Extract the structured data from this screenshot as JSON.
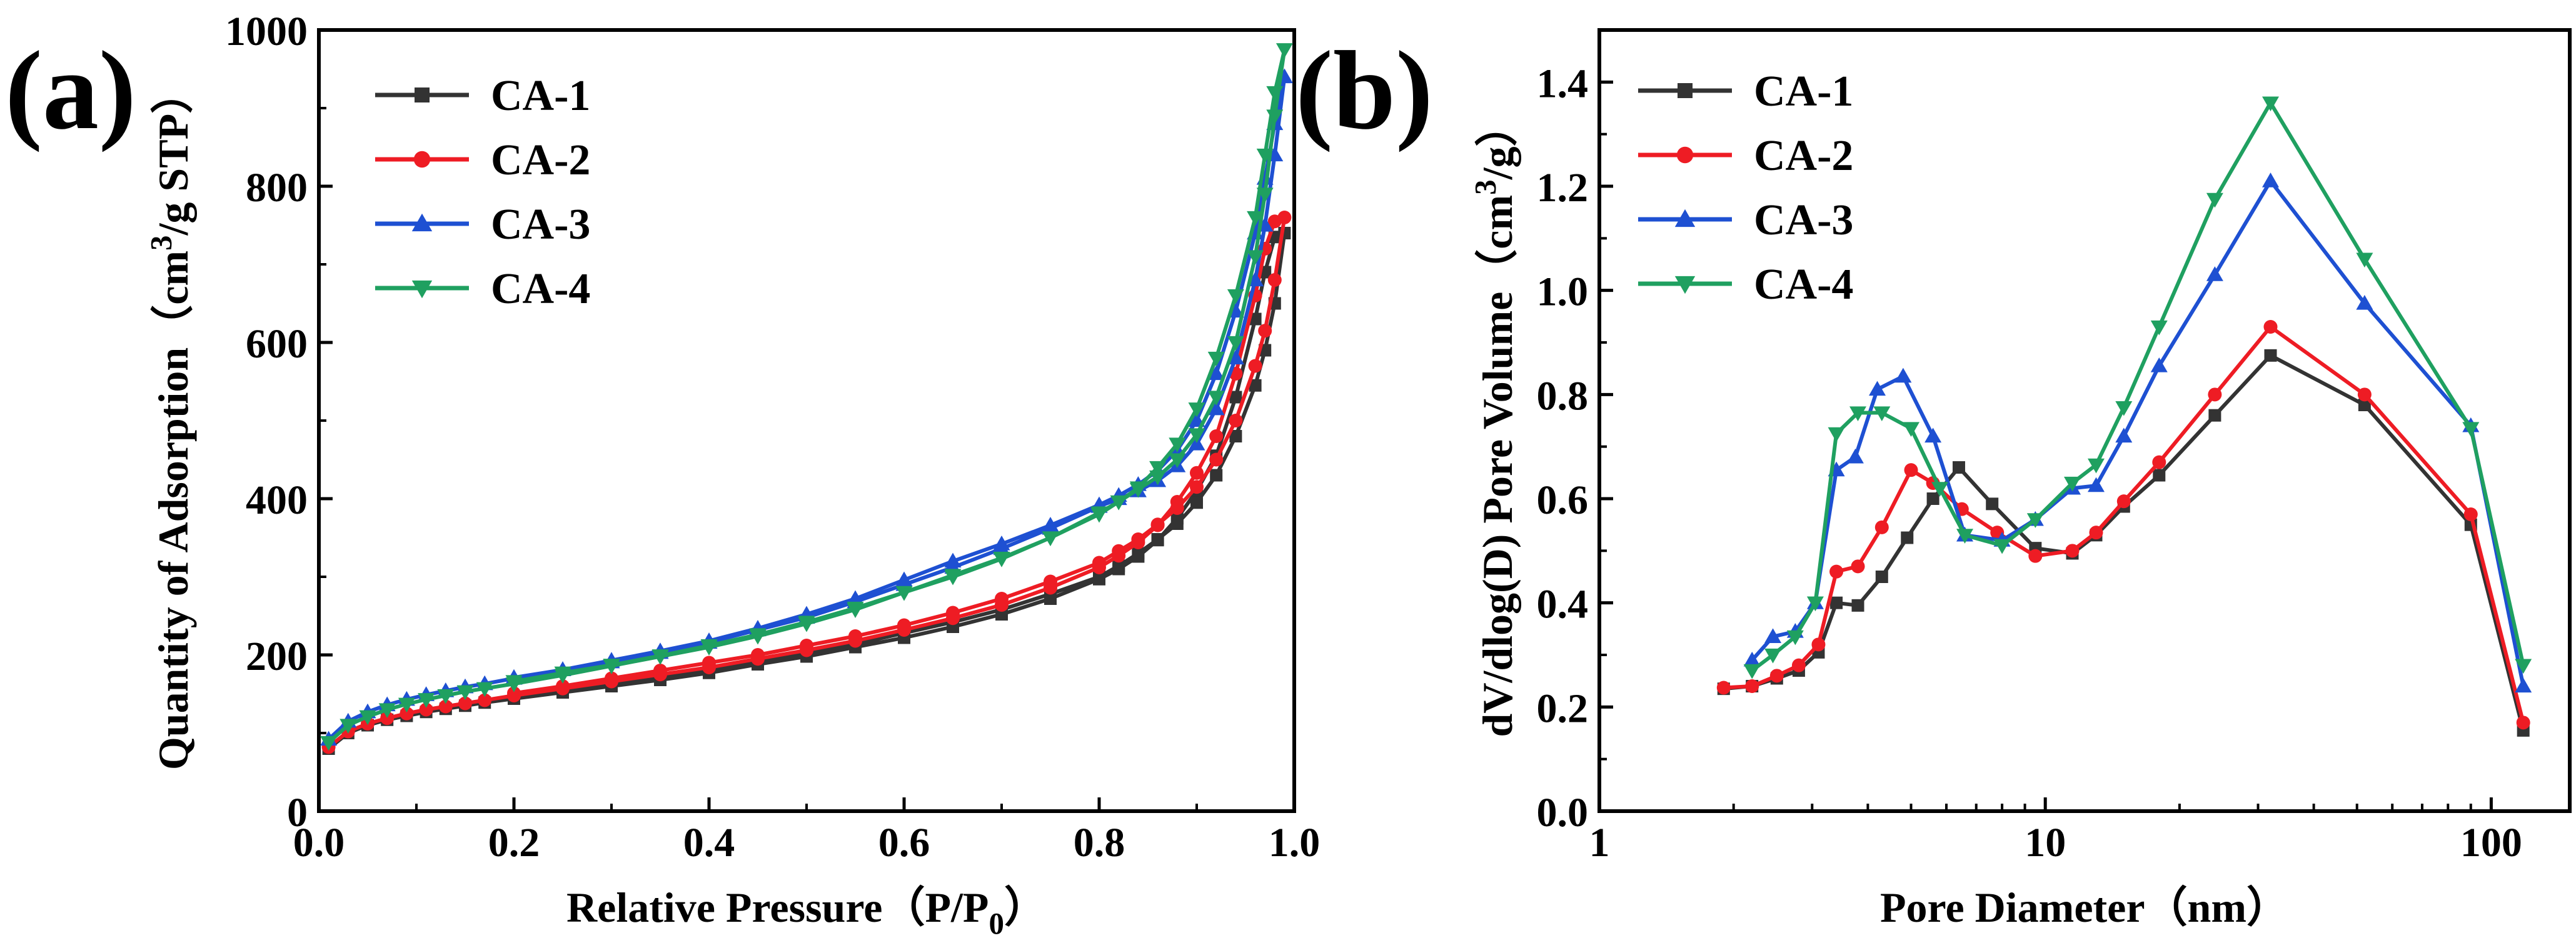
{
  "chart_data": [
    {
      "panel_label": "(a)",
      "type": "line",
      "title": "",
      "xlabel": "Relative Pressure（P/P0）",
      "ylabel": "Quantity of Adsorption（cm3/g STP）",
      "xlim": [
        0,
        1.0
      ],
      "ylim": [
        0,
        1000
      ],
      "x_scale": "linear",
      "x_ticks": [
        "0.0",
        "0.2",
        "0.4",
        "0.6",
        "0.8",
        "1.0"
      ],
      "y_ticks": [
        "0",
        "200",
        "400",
        "600",
        "800",
        "1000"
      ],
      "grid": false,
      "legend_position": "top-left",
      "series": [
        {
          "name": "CA-1",
          "color": "#333333",
          "marker": "square",
          "x": [
            0.01,
            0.03,
            0.05,
            0.07,
            0.09,
            0.11,
            0.13,
            0.15,
            0.17,
            0.2,
            0.25,
            0.3,
            0.35,
            0.4,
            0.45,
            0.5,
            0.55,
            0.6,
            0.65,
            0.7,
            0.75,
            0.8,
            0.82,
            0.84,
            0.86,
            0.88,
            0.9,
            0.92,
            0.94,
            0.96,
            0.97,
            0.98,
            0.99,
            0.98,
            0.97,
            0.96,
            0.94,
            0.92,
            0.9,
            0.88,
            0.86,
            0.84,
            0.82,
            0.8,
            0.75,
            0.7,
            0.65,
            0.6,
            0.55,
            0.5,
            0.45,
            0.4,
            0.35,
            0.3,
            0.25,
            0.2
          ],
          "y": [
            80,
            100,
            110,
            117,
            122,
            127,
            131,
            135,
            139,
            144,
            152,
            160,
            168,
            177,
            188,
            198,
            210,
            222,
            236,
            252,
            272,
            297,
            310,
            326,
            347,
            375,
            410,
            455,
            530,
            630,
            690,
            735,
            740,
            650,
            590,
            545,
            480,
            430,
            395,
            368,
            348,
            330,
            314,
            300,
            278,
            258,
            242,
            228,
            214,
            202,
            192,
            182,
            172,
            162,
            153,
            145
          ]
        },
        {
          "name": "CA-2",
          "color": "#ee1c24",
          "marker": "circle",
          "x": [
            0.01,
            0.03,
            0.05,
            0.07,
            0.09,
            0.11,
            0.13,
            0.15,
            0.17,
            0.2,
            0.25,
            0.3,
            0.35,
            0.4,
            0.45,
            0.5,
            0.55,
            0.6,
            0.65,
            0.7,
            0.75,
            0.8,
            0.82,
            0.84,
            0.86,
            0.88,
            0.9,
            0.92,
            0.94,
            0.96,
            0.97,
            0.98,
            0.99,
            0.98,
            0.97,
            0.96,
            0.94,
            0.92,
            0.9,
            0.88,
            0.86,
            0.84,
            0.82,
            0.8,
            0.75,
            0.7,
            0.65,
            0.6,
            0.55,
            0.5,
            0.45,
            0.4,
            0.35,
            0.3,
            0.25,
            0.2
          ],
          "y": [
            82,
            102,
            112,
            119,
            125,
            130,
            134,
            138,
            142,
            148,
            157,
            166,
            175,
            184,
            195,
            206,
            218,
            232,
            247,
            264,
            286,
            312,
            327,
            344,
            366,
            396,
            433,
            480,
            560,
            660,
            720,
            755,
            760,
            680,
            615,
            570,
            500,
            450,
            415,
            388,
            367,
            348,
            333,
            318,
            294,
            272,
            254,
            238,
            224,
            212,
            200,
            190,
            180,
            170,
            160,
            151
          ]
        },
        {
          "name": "CA-3",
          "color": "#1e50d2",
          "marker": "triangle-up",
          "x": [
            0.01,
            0.03,
            0.05,
            0.07,
            0.09,
            0.11,
            0.13,
            0.15,
            0.17,
            0.2,
            0.25,
            0.3,
            0.35,
            0.4,
            0.45,
            0.5,
            0.55,
            0.6,
            0.65,
            0.7,
            0.75,
            0.8,
            0.82,
            0.84,
            0.86,
            0.88,
            0.9,
            0.92,
            0.94,
            0.96,
            0.97,
            0.98,
            0.99,
            0.98,
            0.97,
            0.96,
            0.94,
            0.92,
            0.9,
            0.88,
            0.86,
            0.84,
            0.82,
            0.8,
            0.75,
            0.7,
            0.65,
            0.6,
            0.55,
            0.5,
            0.45,
            0.4,
            0.35,
            0.3,
            0.25,
            0.2
          ],
          "y": [
            92,
            115,
            127,
            136,
            143,
            149,
            154,
            159,
            163,
            170,
            181,
            193,
            205,
            218,
            234,
            252,
            272,
            296,
            320,
            342,
            366,
            392,
            404,
            418,
            436,
            462,
            500,
            560,
            640,
            740,
            810,
            880,
            940,
            840,
            750,
            680,
            580,
            515,
            470,
            442,
            423,
            410,
            400,
            390,
            362,
            336,
            312,
            290,
            268,
            248,
            232,
            216,
            203,
            191,
            181,
            171
          ]
        },
        {
          "name": "CA-4",
          "color": "#1fa060",
          "marker": "triangle-down",
          "x": [
            0.01,
            0.03,
            0.05,
            0.07,
            0.09,
            0.11,
            0.13,
            0.15,
            0.17,
            0.2,
            0.25,
            0.3,
            0.35,
            0.4,
            0.45,
            0.5,
            0.55,
            0.6,
            0.65,
            0.7,
            0.75,
            0.8,
            0.82,
            0.84,
            0.86,
            0.88,
            0.9,
            0.92,
            0.94,
            0.96,
            0.97,
            0.98,
            0.99,
            0.98,
            0.97,
            0.96,
            0.94,
            0.92,
            0.9,
            0.88,
            0.86,
            0.84,
            0.82,
            0.8,
            0.75,
            0.7,
            0.65,
            0.6,
            0.55,
            0.5,
            0.45,
            0.4,
            0.35,
            0.3,
            0.25,
            0.2
          ],
          "y": [
            88,
            110,
            121,
            130,
            137,
            143,
            148,
            153,
            157,
            163,
            174,
            186,
            198,
            210,
            224,
            240,
            258,
            280,
            302,
            324,
            350,
            380,
            396,
            414,
            440,
            470,
            515,
            580,
            660,
            760,
            840,
            920,
            975,
            890,
            790,
            710,
            600,
            530,
            482,
            450,
            428,
            412,
            396,
            382,
            350,
            323,
            300,
            280,
            260,
            242,
            226,
            212,
            199,
            187,
            177,
            166
          ]
        }
      ]
    },
    {
      "panel_label": "(b)",
      "type": "line",
      "title": "",
      "xlabel": "Pore Diameter（nm）",
      "ylabel": "dV/dlog(D) Pore Volume（cm3/g）",
      "xlim": [
        1,
        150
      ],
      "ylim": [
        0,
        1.5
      ],
      "x_scale": "log",
      "x_ticks": [
        "1",
        "10",
        "100"
      ],
      "y_ticks": [
        "0.0",
        "0.2",
        "0.4",
        "0.6",
        "0.8",
        "1.0",
        "1.2",
        "1.4"
      ],
      "grid": false,
      "legend_position": "top-left",
      "series": [
        {
          "name": "CA-1",
          "color": "#333333",
          "marker": "square",
          "x": [
            1.9,
            2.2,
            2.5,
            2.8,
            3.1,
            3.4,
            3.8,
            4.3,
            4.9,
            5.6,
            6.4,
            7.6,
            9.5,
            11.5,
            13,
            15,
            18,
            24,
            32,
            52,
            90,
            118
          ],
          "y": [
            0.235,
            0.24,
            0.255,
            0.27,
            0.305,
            0.4,
            0.395,
            0.45,
            0.525,
            0.6,
            0.66,
            0.59,
            0.505,
            0.495,
            0.53,
            0.585,
            0.645,
            0.76,
            0.875,
            0.78,
            0.55,
            0.155
          ]
        },
        {
          "name": "CA-2",
          "color": "#ee1c24",
          "marker": "circle",
          "x": [
            1.9,
            2.2,
            2.5,
            2.8,
            3.1,
            3.4,
            3.8,
            4.3,
            5.0,
            5.6,
            6.5,
            7.8,
            9.5,
            11.5,
            13,
            15,
            18,
            24,
            32,
            52,
            90,
            118
          ],
          "y": [
            0.237,
            0.24,
            0.26,
            0.28,
            0.32,
            0.46,
            0.47,
            0.545,
            0.655,
            0.63,
            0.58,
            0.535,
            0.49,
            0.5,
            0.535,
            0.595,
            0.67,
            0.8,
            0.93,
            0.8,
            0.57,
            0.17
          ]
        },
        {
          "name": "CA-3",
          "color": "#1e50d2",
          "marker": "triangle-up",
          "x": [
            2.2,
            2.45,
            2.75,
            3.05,
            3.4,
            3.75,
            4.2,
            4.8,
            5.6,
            6.6,
            8.0,
            9.5,
            11.5,
            13,
            15,
            18,
            24,
            32,
            52,
            90,
            118
          ],
          "y": [
            0.29,
            0.335,
            0.345,
            0.4,
            0.655,
            0.68,
            0.81,
            0.835,
            0.72,
            0.53,
            0.52,
            0.56,
            0.62,
            0.625,
            0.72,
            0.855,
            1.03,
            1.21,
            0.975,
            0.74,
            0.24
          ]
        },
        {
          "name": "CA-4",
          "color": "#1fa060",
          "marker": "triangle-down",
          "x": [
            2.2,
            2.45,
            2.75,
            3.05,
            3.4,
            3.8,
            4.3,
            5.0,
            5.8,
            6.6,
            8.0,
            9.5,
            11.5,
            13,
            15,
            18,
            24,
            32,
            52,
            90,
            118
          ],
          "y": [
            0.27,
            0.3,
            0.335,
            0.4,
            0.725,
            0.765,
            0.765,
            0.735,
            0.62,
            0.53,
            0.51,
            0.56,
            0.63,
            0.665,
            0.775,
            0.93,
            1.175,
            1.36,
            1.06,
            0.735,
            0.28
          ]
        }
      ]
    }
  ]
}
